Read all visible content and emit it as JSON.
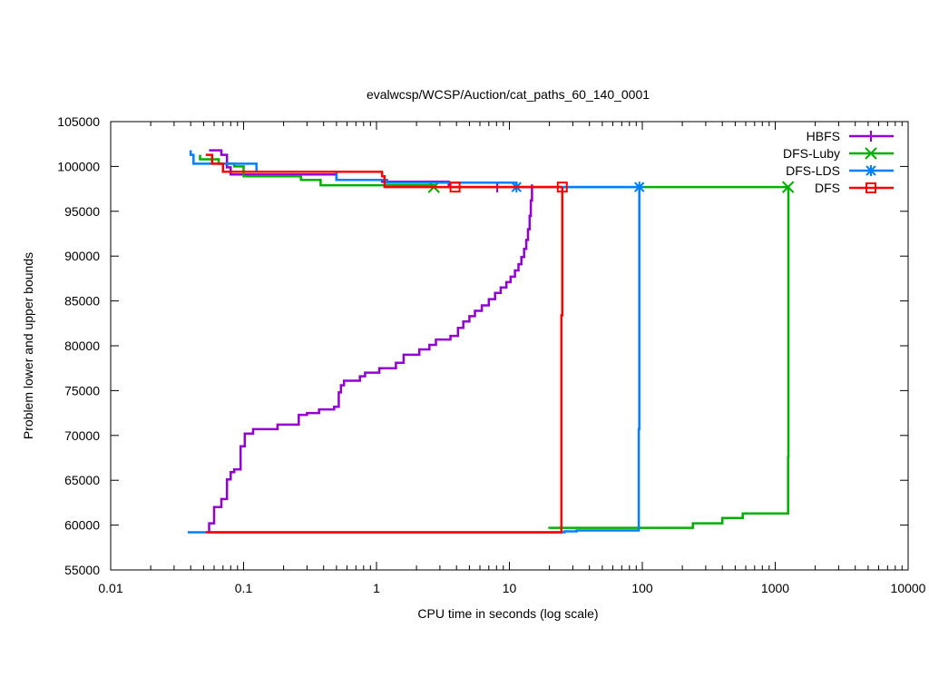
{
  "chart_data": {
    "type": "line",
    "title": "evalwcsp/WCSP/Auction/cat_paths_60_140_0001",
    "xlabel": "CPU time in seconds (log scale)",
    "ylabel": "Problem lower and upper bounds",
    "x_scale": "log",
    "xlim": [
      0.01,
      10000
    ],
    "ylim": [
      55000,
      105000
    ],
    "x_ticks": [
      0.01,
      0.1,
      1,
      10,
      100,
      1000,
      10000
    ],
    "x_tick_labels": [
      "0.01",
      "0.1",
      "1",
      "10",
      "100",
      "1000",
      "10000"
    ],
    "y_ticks": [
      55000,
      60000,
      65000,
      70000,
      75000,
      80000,
      85000,
      90000,
      95000,
      100000,
      105000
    ],
    "y_tick_labels": [
      "55000",
      "60000",
      "65000",
      "70000",
      "75000",
      "80000",
      "85000",
      "90000",
      "95000",
      "100000",
      "105000"
    ],
    "grid": false,
    "legend_position": "top-right",
    "series": [
      {
        "name": "HBFS",
        "color": "#9400d3",
        "marker": "plus",
        "markers": [
          [
            8.1,
            97700
          ]
        ],
        "lower": [
          [
            0.055,
            59200
          ],
          [
            0.055,
            60200
          ],
          [
            0.06,
            60200
          ],
          [
            0.06,
            62000
          ],
          [
            0.068,
            62000
          ],
          [
            0.068,
            62900
          ],
          [
            0.075,
            62900
          ],
          [
            0.075,
            65100
          ],
          [
            0.08,
            65100
          ],
          [
            0.08,
            65900
          ],
          [
            0.085,
            65900
          ],
          [
            0.085,
            66200
          ],
          [
            0.095,
            66200
          ],
          [
            0.095,
            68800
          ],
          [
            0.102,
            68800
          ],
          [
            0.102,
            70200
          ],
          [
            0.118,
            70200
          ],
          [
            0.118,
            70700
          ],
          [
            0.18,
            70700
          ],
          [
            0.18,
            71200
          ],
          [
            0.26,
            71200
          ],
          [
            0.26,
            72300
          ],
          [
            0.3,
            72300
          ],
          [
            0.3,
            72500
          ],
          [
            0.37,
            72500
          ],
          [
            0.37,
            72900
          ],
          [
            0.48,
            72900
          ],
          [
            0.48,
            73200
          ],
          [
            0.52,
            73200
          ],
          [
            0.52,
            74800
          ],
          [
            0.54,
            74800
          ],
          [
            0.54,
            75600
          ],
          [
            0.57,
            75600
          ],
          [
            0.57,
            76100
          ],
          [
            0.75,
            76100
          ],
          [
            0.75,
            76600
          ],
          [
            0.82,
            76600
          ],
          [
            0.82,
            77000
          ],
          [
            1.05,
            77000
          ],
          [
            1.05,
            77500
          ],
          [
            1.4,
            77500
          ],
          [
            1.4,
            78100
          ],
          [
            1.6,
            78100
          ],
          [
            1.6,
            79000
          ],
          [
            2.1,
            79000
          ],
          [
            2.1,
            79600
          ],
          [
            2.5,
            79600
          ],
          [
            2.5,
            80100
          ],
          [
            2.8,
            80100
          ],
          [
            2.8,
            80700
          ],
          [
            3.6,
            80700
          ],
          [
            3.6,
            81100
          ],
          [
            4.1,
            81100
          ],
          [
            4.1,
            82000
          ],
          [
            4.5,
            82000
          ],
          [
            4.5,
            82700
          ],
          [
            5.0,
            82700
          ],
          [
            5.0,
            83300
          ],
          [
            5.5,
            83300
          ],
          [
            5.5,
            83900
          ],
          [
            6.2,
            83900
          ],
          [
            6.2,
            84500
          ],
          [
            7.0,
            84500
          ],
          [
            7.0,
            85200
          ],
          [
            7.8,
            85200
          ],
          [
            7.8,
            85900
          ],
          [
            8.6,
            85900
          ],
          [
            8.6,
            86500
          ],
          [
            9.5,
            86500
          ],
          [
            9.5,
            87100
          ],
          [
            10.2,
            87100
          ],
          [
            10.2,
            87700
          ],
          [
            11.0,
            87700
          ],
          [
            11.0,
            88400
          ],
          [
            11.7,
            88400
          ],
          [
            11.7,
            89100
          ],
          [
            12.3,
            89100
          ],
          [
            12.3,
            89900
          ],
          [
            12.9,
            89900
          ],
          [
            12.9,
            90800
          ],
          [
            13.4,
            90800
          ],
          [
            13.4,
            91800
          ],
          [
            13.8,
            91800
          ],
          [
            13.8,
            93000
          ],
          [
            14.2,
            93000
          ],
          [
            14.2,
            94500
          ],
          [
            14.5,
            94500
          ],
          [
            14.5,
            96200
          ],
          [
            14.8,
            96200
          ],
          [
            14.8,
            98000
          ]
        ],
        "upper": [
          [
            0.055,
            101800
          ],
          [
            0.068,
            101800
          ],
          [
            0.068,
            101300
          ],
          [
            0.075,
            101300
          ],
          [
            0.075,
            99900
          ],
          [
            0.08,
            99900
          ],
          [
            0.08,
            99100
          ],
          [
            0.5,
            99100
          ],
          [
            0.5,
            98500
          ],
          [
            1.1,
            98500
          ],
          [
            1.1,
            98300
          ],
          [
            3.5,
            98300
          ],
          [
            3.5,
            97700
          ],
          [
            14.8,
            97700
          ]
        ]
      },
      {
        "name": "DFS-Luby",
        "color": "#00b000",
        "marker": "x",
        "markers": [
          [
            2.7,
            97700
          ],
          [
            1250,
            97700
          ]
        ],
        "lower": [
          [
            20,
            59600
          ],
          [
            20,
            59700
          ],
          [
            240,
            59700
          ],
          [
            240,
            60200
          ],
          [
            400,
            60200
          ],
          [
            400,
            60800
          ],
          [
            570,
            60800
          ],
          [
            570,
            61300
          ],
          [
            1250,
            61300
          ],
          [
            1250,
            67600
          ],
          [
            1255,
            67600
          ],
          [
            1255,
            97700
          ]
        ],
        "upper": [
          [
            0.047,
            101300
          ],
          [
            0.047,
            100800
          ],
          [
            0.065,
            100800
          ],
          [
            0.065,
            100300
          ],
          [
            0.085,
            100300
          ],
          [
            0.085,
            100000
          ],
          [
            0.1,
            100000
          ],
          [
            0.1,
            98900
          ],
          [
            0.27,
            98900
          ],
          [
            0.27,
            98500
          ],
          [
            0.38,
            98500
          ],
          [
            0.38,
            97900
          ],
          [
            2.7,
            97900
          ],
          [
            2.7,
            97700
          ],
          [
            1255,
            97700
          ]
        ]
      },
      {
        "name": "DFS-LDS",
        "color": "#0080ff",
        "marker": "star",
        "markers": [
          [
            11.3,
            97700
          ],
          [
            95,
            97700
          ]
        ],
        "lower": [
          [
            0.038,
            59200
          ],
          [
            26,
            59200
          ],
          [
            26,
            59300
          ],
          [
            32,
            59300
          ],
          [
            32,
            59400
          ],
          [
            94,
            59400
          ],
          [
            94,
            70700
          ],
          [
            95,
            70700
          ],
          [
            95,
            97700
          ]
        ],
        "upper": [
          [
            0.04,
            101800
          ],
          [
            0.04,
            101300
          ],
          [
            0.042,
            101300
          ],
          [
            0.042,
            100300
          ],
          [
            0.125,
            100300
          ],
          [
            0.125,
            99400
          ],
          [
            0.5,
            99400
          ],
          [
            0.5,
            98500
          ],
          [
            1.2,
            98500
          ],
          [
            1.2,
            98200
          ],
          [
            11.3,
            98200
          ],
          [
            11.3,
            97700
          ],
          [
            95,
            97700
          ]
        ]
      },
      {
        "name": "DFS",
        "color": "#ff0000",
        "marker": "square",
        "markers": [
          [
            3.9,
            97700
          ],
          [
            25,
            97700
          ]
        ],
        "lower": [
          [
            0.052,
            59200
          ],
          [
            24.6,
            59200
          ],
          [
            24.6,
            83400
          ],
          [
            25,
            83400
          ],
          [
            25,
            97700
          ]
        ],
        "upper": [
          [
            0.052,
            101300
          ],
          [
            0.058,
            101300
          ],
          [
            0.058,
            100300
          ],
          [
            0.07,
            100300
          ],
          [
            0.07,
            99400
          ],
          [
            1.1,
            99400
          ],
          [
            1.1,
            98900
          ],
          [
            1.15,
            98900
          ],
          [
            1.15,
            97700
          ],
          [
            25,
            97700
          ]
        ]
      }
    ]
  }
}
